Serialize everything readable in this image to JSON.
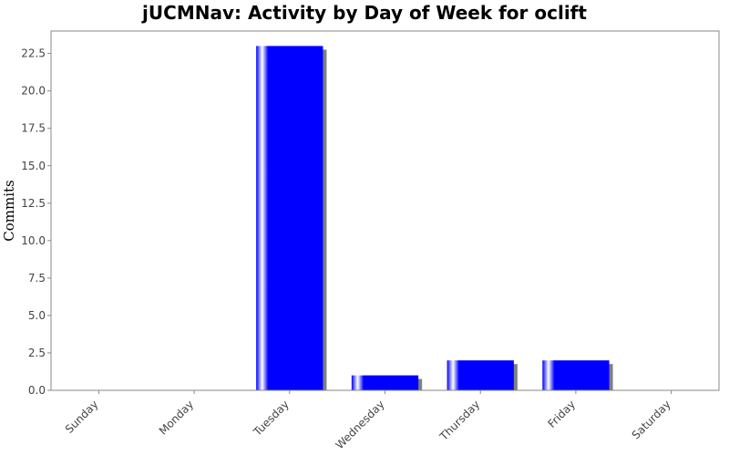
{
  "chart_data": {
    "type": "bar",
    "title": "jUCMNav: Activity by Day of Week for oclift",
    "xlabel": "",
    "ylabel": "Commits",
    "categories": [
      "Sunday",
      "Monday",
      "Tuesday",
      "Wednesday",
      "Thursday",
      "Friday",
      "Saturday"
    ],
    "values": [
      0,
      0,
      23,
      1,
      2,
      2,
      0
    ],
    "ylim": [
      0,
      24
    ],
    "yticks": [
      "0.0",
      "2.5",
      "5.0",
      "7.5",
      "10.0",
      "12.5",
      "15.0",
      "17.5",
      "20.0",
      "22.5"
    ],
    "grid": false,
    "legend": "none",
    "bar_color": "#0000ff",
    "shadow_color": "#808080"
  }
}
